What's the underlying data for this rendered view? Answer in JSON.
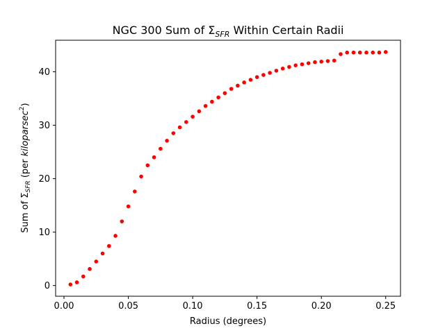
{
  "chart_data": {
    "type": "scatter",
    "title_main": "NGC 300 Sum of Σ",
    "title_sub": "SFR",
    "title_rest": " Within Certain Radii",
    "xlabel": "Radius (degrees)",
    "ylabel_main": "Sum of Σ",
    "ylabel_sub": "SFR",
    "ylabel_mid": " (per ",
    "ylabel_ital": "kiloparsec",
    "ylabel_sup": "2",
    "ylabel_end": ")",
    "xlim": [
      -0.0065,
      0.2615
    ],
    "ylim": [
      -2.0,
      45.9
    ],
    "x_ticks": [
      0.0,
      0.05,
      0.1,
      0.15,
      0.2,
      0.25
    ],
    "x_tick_labels": [
      "0.00",
      "0.05",
      "0.10",
      "0.15",
      "0.20",
      "0.25"
    ],
    "y_ticks": [
      0,
      10,
      20,
      30,
      40
    ],
    "y_tick_labels": [
      "0",
      "10",
      "20",
      "30",
      "40"
    ],
    "grid": false,
    "marker_color": "#ff0000",
    "series": [
      {
        "x": [
          0.005,
          0.01,
          0.015,
          0.02,
          0.025,
          0.03,
          0.035,
          0.04,
          0.045,
          0.05,
          0.055,
          0.06,
          0.065,
          0.07,
          0.075,
          0.08,
          0.085,
          0.09,
          0.095,
          0.1,
          0.105,
          0.11,
          0.115,
          0.12,
          0.125,
          0.13,
          0.135,
          0.14,
          0.145,
          0.15,
          0.155,
          0.16,
          0.165,
          0.17,
          0.175,
          0.18,
          0.185,
          0.19,
          0.195,
          0.2,
          0.205,
          0.21,
          0.215,
          0.22,
          0.225,
          0.23,
          0.235,
          0.24,
          0.245,
          0.25
        ],
        "y": [
          0.2,
          0.6,
          1.7,
          3.1,
          4.5,
          6.0,
          7.4,
          9.3,
          12.0,
          14.8,
          17.6,
          20.4,
          22.5,
          24.0,
          25.6,
          27.1,
          28.5,
          29.6,
          30.6,
          31.6,
          32.6,
          33.6,
          34.4,
          35.2,
          36.0,
          36.8,
          37.4,
          38.0,
          38.5,
          39.0,
          39.4,
          39.8,
          40.2,
          40.6,
          40.9,
          41.2,
          41.4,
          41.6,
          41.8,
          41.9,
          42.0,
          42.1,
          43.3,
          43.6,
          43.6,
          43.6,
          43.6,
          43.6,
          43.6,
          43.7
        ]
      }
    ]
  }
}
